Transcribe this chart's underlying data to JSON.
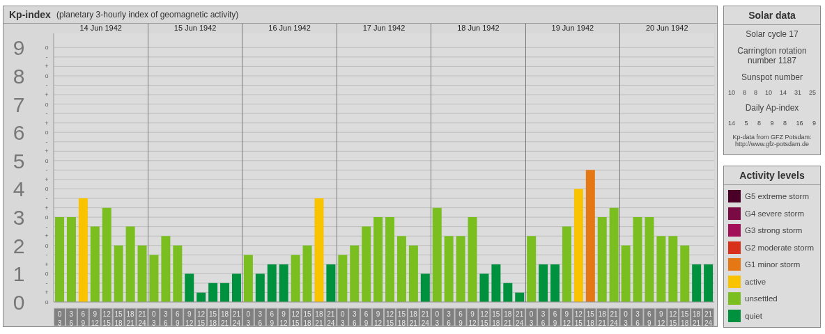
{
  "chart_data": {
    "type": "bar",
    "title": "Kp-index",
    "subtitle": "(planetary 3-hourly index of geomagnetic activity)",
    "categories": [
      "0\n3",
      "3\n6",
      "6\n9",
      "9\n12",
      "12\n15",
      "15\n18",
      "18\n21",
      "21\n24",
      "0\n3",
      "3\n6",
      "6\n9",
      "9\n12",
      "12\n15",
      "15\n18",
      "18\n21",
      "21\n24",
      "0\n3",
      "3\n6",
      "6\n9",
      "9\n12",
      "12\n15",
      "15\n18",
      "18\n21",
      "21\n24",
      "0\n3",
      "3\n6",
      "6\n9",
      "9\n12",
      "12\n15",
      "15\n18",
      "18\n21",
      "21\n24",
      "0\n3",
      "3\n6",
      "6\n9",
      "9\n12",
      "12\n15",
      "15\n18",
      "18\n21",
      "21\n24",
      "0\n3",
      "3\n6",
      "6\n9",
      "9\n12",
      "12\n15",
      "15\n18",
      "18\n21",
      "21\n24",
      "0\n3",
      "3\n6",
      "6\n9",
      "9\n12",
      "12\n15",
      "15\n18",
      "18\n21",
      "21\n24"
    ],
    "stacked": true,
    "series": [
      {
        "name": "G5 extreme storm",
        "color": "#4a0026",
        "values": [
          null,
          null,
          null,
          null,
          null,
          null,
          null,
          null,
          null,
          null,
          null,
          null,
          null,
          null,
          null,
          null,
          null,
          null,
          null,
          null,
          null,
          null,
          null,
          null,
          null,
          null,
          null,
          null,
          null,
          null,
          null,
          null,
          null,
          null,
          null,
          null,
          null,
          null,
          null,
          null,
          null,
          null,
          null,
          null,
          null,
          null,
          null,
          null,
          null,
          null,
          null,
          null,
          null,
          null,
          null,
          null
        ]
      },
      {
        "name": "G4 severe storm",
        "color": "#7a0a44",
        "values": [
          null,
          null,
          null,
          null,
          null,
          null,
          null,
          null,
          null,
          null,
          null,
          null,
          null,
          null,
          null,
          null,
          null,
          null,
          null,
          null,
          null,
          null,
          null,
          null,
          null,
          null,
          null,
          null,
          null,
          null,
          null,
          null,
          null,
          null,
          null,
          null,
          null,
          null,
          null,
          null,
          null,
          null,
          null,
          null,
          null,
          null,
          null,
          null,
          null,
          null,
          null,
          null,
          null,
          null,
          null,
          null
        ]
      },
      {
        "name": "G3 strong storm",
        "color": "#a3105a",
        "values": [
          null,
          null,
          null,
          null,
          null,
          null,
          null,
          null,
          null,
          null,
          null,
          null,
          null,
          null,
          null,
          null,
          null,
          null,
          null,
          null,
          null,
          null,
          null,
          null,
          null,
          null,
          null,
          null,
          null,
          null,
          null,
          null,
          null,
          null,
          null,
          null,
          null,
          null,
          null,
          null,
          null,
          null,
          null,
          null,
          null,
          null,
          null,
          null,
          null,
          null,
          null,
          null,
          null,
          null,
          null,
          null
        ]
      },
      {
        "name": "G2 moderate storm",
        "color": "#d9301c",
        "values": [
          null,
          null,
          null,
          null,
          null,
          null,
          null,
          null,
          null,
          null,
          null,
          null,
          null,
          null,
          null,
          null,
          null,
          null,
          null,
          null,
          null,
          null,
          null,
          null,
          null,
          null,
          null,
          null,
          null,
          null,
          null,
          null,
          null,
          null,
          null,
          null,
          null,
          null,
          null,
          null,
          null,
          null,
          null,
          null,
          null,
          null,
          null,
          null,
          null,
          null,
          null,
          null,
          null,
          null,
          null,
          null
        ]
      },
      {
        "name": "G1 minor storm",
        "color": "#e57715",
        "values": [
          null,
          null,
          null,
          null,
          null,
          null,
          null,
          null,
          null,
          null,
          null,
          null,
          null,
          null,
          null,
          null,
          null,
          null,
          null,
          null,
          null,
          null,
          null,
          null,
          null,
          null,
          null,
          null,
          null,
          null,
          null,
          null,
          null,
          null,
          null,
          null,
          null,
          null,
          null,
          null,
          null,
          null,
          null,
          null,
          null,
          4.67,
          null,
          null,
          null,
          null,
          null,
          null,
          null,
          null,
          null,
          null
        ]
      },
      {
        "name": "active",
        "color": "#f9c300",
        "values": [
          null,
          null,
          3.67,
          null,
          null,
          null,
          null,
          null,
          null,
          null,
          null,
          null,
          null,
          null,
          null,
          null,
          null,
          null,
          null,
          null,
          null,
          null,
          3.67,
          null,
          null,
          null,
          null,
          null,
          null,
          null,
          null,
          null,
          null,
          null,
          null,
          null,
          null,
          null,
          null,
          null,
          null,
          null,
          null,
          null,
          4,
          null,
          null,
          null,
          null,
          null,
          null,
          null,
          null,
          null,
          null,
          null
        ]
      },
      {
        "name": "unsettled",
        "color": "#7abf1f",
        "values": [
          3,
          3,
          null,
          2.67,
          3.33,
          2,
          2.67,
          2,
          1.67,
          2.33,
          2,
          null,
          null,
          null,
          null,
          null,
          1.67,
          null,
          null,
          null,
          1.67,
          2,
          null,
          null,
          1.67,
          2,
          2.67,
          3,
          3,
          2.33,
          2,
          null,
          3.33,
          2.33,
          2.33,
          3,
          null,
          null,
          null,
          null,
          2.33,
          null,
          null,
          2.67,
          null,
          null,
          3,
          3.33,
          2,
          3,
          3,
          2.33,
          2.33,
          2,
          null,
          null
        ]
      },
      {
        "name": "quiet",
        "color": "#00913f",
        "values": [
          null,
          null,
          null,
          null,
          null,
          null,
          null,
          null,
          null,
          null,
          null,
          1,
          0.33,
          0.67,
          0.67,
          1,
          null,
          1,
          1.33,
          1.33,
          null,
          null,
          null,
          1.33,
          null,
          null,
          null,
          null,
          null,
          null,
          null,
          1,
          null,
          null,
          null,
          null,
          1,
          1.33,
          0.67,
          0.33,
          null,
          1.33,
          1.33,
          null,
          null,
          null,
          null,
          null,
          null,
          null,
          null,
          null,
          null,
          null,
          1.33,
          1.33
        ]
      }
    ],
    "ylim": [
      0,
      9.5
    ],
    "yticks": [
      0,
      1,
      2,
      3,
      4,
      5,
      6,
      7,
      8,
      9
    ],
    "grid": "y",
    "legend": "right",
    "legend_title": "Activity levels",
    "annotations": [
      "14 Jun 1942",
      "15 Jun 1942",
      "16 Jun 1942",
      "17 Jun 1942",
      "18 Jun 1942",
      "19 Jun 1942",
      "20 Jun 1942",
      "Solar data",
      "Solar cycle 17",
      "Carrington rotation number 1187",
      "Sunspot number",
      "10 8 8 10 14 31 25",
      "Daily Ap-index",
      "14 5 8 9 8 16 9",
      "Kp-data from GFZ Potsdam: http://www.gfz-potsdam.de",
      "o",
      "+",
      "-",
      "o",
      "+",
      "-",
      "o",
      "+",
      "-",
      "o",
      "+",
      "-",
      "o",
      "+",
      "-",
      "o",
      "+",
      "-",
      "o",
      "+",
      "-",
      "o",
      "+",
      "-",
      "o",
      "+",
      "-",
      "o"
    ]
  }
}
